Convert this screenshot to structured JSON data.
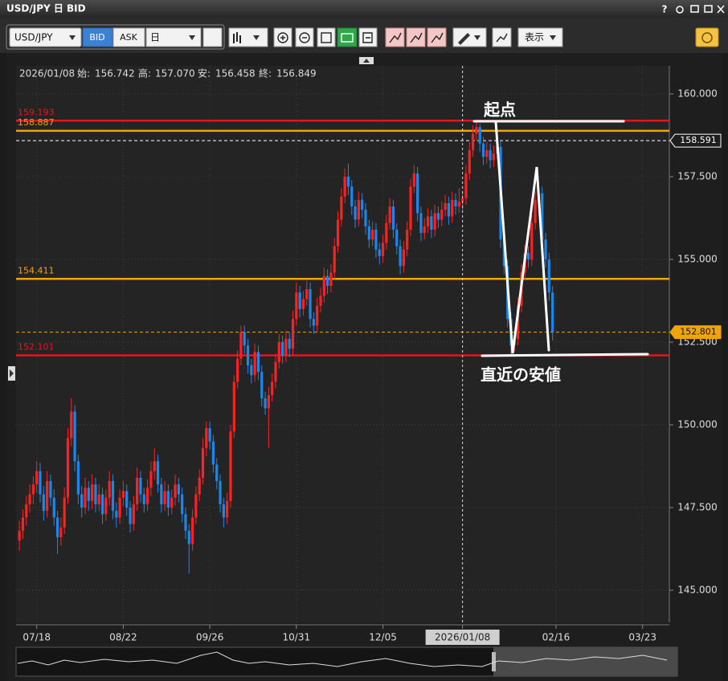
{
  "window": {
    "title": "USD/JPY 日 BID",
    "help": "?"
  },
  "toolbar": {
    "symbol": "USD/JPY",
    "bid": "BID",
    "ask": "ASK",
    "period": "日",
    "view": "表示"
  },
  "info": {
    "date": "2026/01/08",
    "open_label": "始:",
    "open": "156.742",
    "high_label": "高:",
    "high": "157.070",
    "low_label": "安:",
    "low": "156.458",
    "close_label": "終:",
    "close": "156.849"
  },
  "annotations": {
    "start": "起点",
    "recent_low": "直近の安値"
  },
  "chart_data": {
    "type": "candlestick",
    "up_color": "#ff2121",
    "down_color": "#1f86e8",
    "grid": true,
    "ylim": [
      144.03,
      160.85
    ],
    "yticks": [
      {
        "value": 145,
        "label": "145.000"
      },
      {
        "value": 147.5,
        "label": "147.500"
      },
      {
        "value": 150,
        "label": "150.000"
      },
      {
        "value": 152.5,
        "label": "152.500"
      },
      {
        "value": 155,
        "label": "155.000"
      },
      {
        "value": 157.5,
        "label": "157.500"
      },
      {
        "value": 160,
        "label": "160.000"
      }
    ],
    "levels": [
      {
        "value": 159.193,
        "color": "#e8141b",
        "style": "solid",
        "label_side": "left"
      },
      {
        "value": 158.887,
        "color": "#f0a500",
        "style": "solid",
        "label_side": "left"
      },
      {
        "value": 158.591,
        "color": "#ffffff",
        "style": "dashed",
        "label_side": "right"
      },
      {
        "value": 154.411,
        "color": "#f0a500",
        "style": "solid",
        "label_side": "left"
      },
      {
        "value": 152.801,
        "color": "#f0a500",
        "style": "dashed",
        "label_side": "right"
      },
      {
        "value": 152.101,
        "color": "#e8141b",
        "style": "solid",
        "label_side": "left"
      }
    ],
    "categories": [
      null,
      null,
      null,
      null,
      null,
      "07/18",
      null,
      null,
      null,
      null,
      null,
      null,
      null,
      null,
      null,
      null,
      null,
      null,
      null,
      null,
      null,
      null,
      null,
      null,
      null,
      null,
      null,
      null,
      null,
      null,
      "08/22",
      null,
      null,
      null,
      null,
      null,
      null,
      null,
      null,
      null,
      null,
      null,
      null,
      null,
      null,
      null,
      null,
      null,
      null,
      null,
      null,
      null,
      null,
      null,
      null,
      "09/26",
      null,
      null,
      null,
      null,
      null,
      null,
      null,
      null,
      null,
      null,
      null,
      null,
      null,
      null,
      null,
      null,
      null,
      null,
      null,
      null,
      null,
      null,
      null,
      null,
      "10/31",
      null,
      null,
      null,
      null,
      null,
      null,
      null,
      null,
      null,
      null,
      null,
      null,
      null,
      null,
      null,
      null,
      null,
      null,
      null,
      null,
      null,
      null,
      null,
      null,
      "12/05",
      null,
      null,
      null,
      null,
      null,
      null,
      null,
      null,
      null,
      null,
      null,
      null,
      null,
      null,
      null,
      null,
      null,
      null,
      null,
      null,
      null,
      null,
      "2026/01/08",
      null,
      null,
      null,
      null,
      null,
      null,
      null,
      null,
      null,
      null,
      null,
      null,
      null,
      null,
      null,
      null,
      null,
      null,
      null,
      null,
      null,
      null,
      null,
      null,
      null,
      null,
      "02/16",
      null,
      null,
      null,
      null,
      null,
      null,
      null,
      null,
      null,
      null,
      null,
      null,
      null,
      null,
      null,
      null,
      null,
      null,
      null,
      null,
      null,
      null,
      null,
      null,
      "03/23",
      null,
      null,
      null,
      null,
      null,
      null,
      null
    ],
    "ohlc": [
      [
        146.5,
        147.1,
        146.2,
        146.8
      ],
      [
        146.8,
        147.45,
        146.55,
        147.2
      ],
      [
        147.2,
        147.85,
        146.95,
        147.6
      ],
      [
        147.6,
        148.2,
        147.35,
        147.9
      ],
      [
        147.9,
        148.45,
        147.6,
        148.2
      ],
      [
        148.2,
        148.9,
        147.95,
        148.6
      ],
      [
        148.6,
        148.85,
        147.65,
        147.9
      ],
      [
        147.9,
        148.15,
        147.1,
        147.4
      ],
      [
        147.4,
        148.6,
        147.2,
        148.3
      ],
      [
        148.3,
        148.5,
        147.55,
        147.8
      ],
      [
        147.8,
        148.05,
        146.95,
        147.2
      ],
      [
        147.2,
        147.4,
        146.1,
        146.6
      ],
      [
        146.6,
        147.2,
        146.35,
        146.9
      ],
      [
        146.9,
        148.1,
        146.7,
        147.8
      ],
      [
        147.8,
        149.9,
        147.6,
        149.6
      ],
      [
        149.6,
        150.8,
        149.35,
        150.4
      ],
      [
        150.4,
        150.6,
        148.6,
        148.9
      ],
      [
        148.9,
        149.1,
        147.6,
        147.9
      ],
      [
        147.9,
        148.15,
        147.2,
        147.5
      ],
      [
        147.5,
        148.4,
        147.3,
        148.1
      ],
      [
        148.1,
        148.3,
        147.4,
        147.7
      ],
      [
        147.7,
        148.5,
        147.45,
        148.2
      ],
      [
        148.2,
        148.4,
        147.35,
        147.6
      ],
      [
        147.6,
        148.2,
        147.4,
        147.9
      ],
      [
        147.9,
        148.1,
        147.0,
        147.3
      ],
      [
        147.3,
        148.05,
        147.1,
        147.8
      ],
      [
        147.8,
        148.6,
        147.55,
        148.3
      ],
      [
        148.3,
        148.5,
        147.15,
        147.4
      ],
      [
        147.4,
        147.65,
        146.9,
        147.2
      ],
      [
        147.2,
        148.05,
        147.0,
        147.8
      ],
      [
        147.8,
        148.3,
        147.55,
        148.0
      ],
      [
        148.0,
        148.2,
        147.25,
        147.5
      ],
      [
        147.5,
        147.7,
        146.75,
        147.0
      ],
      [
        147.0,
        147.85,
        146.8,
        147.6
      ],
      [
        147.6,
        148.7,
        147.4,
        148.4
      ],
      [
        148.4,
        148.6,
        147.65,
        147.9
      ],
      [
        147.9,
        148.1,
        147.35,
        147.6
      ],
      [
        147.6,
        148.35,
        147.4,
        148.1
      ],
      [
        148.1,
        148.9,
        147.85,
        148.6
      ],
      [
        148.6,
        149.3,
        148.35,
        148.9
      ],
      [
        148.9,
        149.1,
        147.95,
        148.2
      ],
      [
        148.2,
        148.4,
        147.35,
        147.6
      ],
      [
        147.6,
        148.3,
        147.4,
        148.0
      ],
      [
        148.0,
        148.2,
        147.25,
        147.5
      ],
      [
        147.5,
        148.05,
        147.3,
        147.8
      ],
      [
        147.8,
        148.5,
        147.55,
        148.2
      ],
      [
        148.2,
        148.4,
        147.65,
        147.9
      ],
      [
        147.9,
        148.1,
        147.05,
        147.3
      ],
      [
        147.3,
        147.5,
        146.55,
        146.8
      ],
      [
        146.8,
        147.0,
        145.5,
        146.4
      ],
      [
        146.4,
        147.45,
        146.2,
        147.2
      ],
      [
        147.2,
        148.15,
        147.0,
        147.9
      ],
      [
        147.9,
        148.65,
        147.7,
        148.4
      ],
      [
        148.4,
        149.6,
        148.2,
        149.3
      ],
      [
        149.3,
        150.1,
        149.05,
        149.9
      ],
      [
        149.9,
        150.1,
        149.25,
        149.5
      ],
      [
        149.5,
        149.7,
        148.55,
        148.8
      ],
      [
        148.8,
        149.0,
        148.05,
        148.3
      ],
      [
        148.3,
        148.5,
        147.35,
        147.6
      ],
      [
        147.6,
        147.8,
        146.9,
        147.2
      ],
      [
        147.2,
        147.95,
        147.0,
        147.7
      ],
      [
        147.7,
        150.0,
        147.5,
        149.8
      ],
      [
        149.8,
        151.5,
        149.6,
        151.3
      ],
      [
        151.3,
        152.25,
        151.1,
        152.0
      ],
      [
        152.0,
        153.0,
        151.8,
        152.8
      ],
      [
        152.8,
        153.0,
        152.15,
        152.4
      ],
      [
        152.4,
        152.6,
        151.55,
        151.8
      ],
      [
        151.8,
        152.0,
        151.25,
        151.5
      ],
      [
        151.5,
        152.45,
        151.3,
        152.2
      ],
      [
        152.2,
        152.4,
        151.35,
        151.6
      ],
      [
        151.6,
        151.8,
        150.55,
        150.8
      ],
      [
        150.8,
        151.0,
        150.3,
        150.5
      ],
      [
        150.5,
        151.15,
        149.3,
        150.9
      ],
      [
        150.9,
        151.55,
        150.7,
        151.3
      ],
      [
        151.3,
        152.15,
        151.1,
        151.9
      ],
      [
        151.9,
        152.75,
        151.7,
        152.5
      ],
      [
        152.5,
        152.7,
        151.85,
        152.1
      ],
      [
        152.1,
        152.85,
        151.9,
        152.6
      ],
      [
        152.6,
        152.8,
        152.05,
        152.3
      ],
      [
        152.3,
        153.45,
        152.1,
        153.2
      ],
      [
        153.2,
        154.3,
        153.0,
        154.0
      ],
      [
        154.0,
        154.2,
        153.25,
        153.5
      ],
      [
        153.5,
        154.05,
        153.3,
        153.8
      ],
      [
        153.8,
        154.35,
        153.6,
        154.1
      ],
      [
        154.1,
        154.3,
        152.95,
        153.2
      ],
      [
        153.2,
        153.4,
        152.75,
        153.0
      ],
      [
        153.0,
        153.85,
        152.8,
        153.6
      ],
      [
        153.6,
        154.15,
        153.4,
        153.9
      ],
      [
        153.9,
        154.75,
        153.7,
        154.5
      ],
      [
        154.5,
        154.7,
        153.95,
        154.2
      ],
      [
        154.2,
        154.85,
        154.0,
        154.6
      ],
      [
        154.6,
        155.65,
        154.4,
        155.4
      ],
      [
        155.4,
        156.45,
        155.2,
        156.2
      ],
      [
        156.2,
        157.15,
        156.0,
        156.9
      ],
      [
        156.9,
        157.75,
        156.7,
        157.5
      ],
      [
        157.5,
        157.9,
        156.95,
        157.2
      ],
      [
        157.2,
        157.4,
        156.35,
        156.6
      ],
      [
        156.6,
        156.8,
        155.95,
        156.2
      ],
      [
        156.2,
        157.05,
        156.0,
        156.8
      ],
      [
        156.8,
        157.0,
        156.25,
        156.5
      ],
      [
        156.5,
        156.7,
        155.75,
        156.0
      ],
      [
        156.0,
        156.2,
        155.35,
        155.6
      ],
      [
        155.6,
        156.15,
        155.4,
        155.9
      ],
      [
        155.9,
        156.1,
        155.05,
        155.3
      ],
      [
        155.3,
        155.5,
        154.85,
        155.1
      ],
      [
        155.1,
        155.75,
        154.9,
        155.5
      ],
      [
        155.5,
        156.35,
        155.3,
        156.1
      ],
      [
        156.1,
        156.85,
        155.9,
        156.6
      ],
      [
        156.6,
        156.8,
        155.65,
        155.9
      ],
      [
        155.9,
        156.1,
        155.15,
        155.4
      ],
      [
        155.4,
        155.6,
        154.55,
        154.8
      ],
      [
        154.8,
        155.55,
        154.6,
        155.3
      ],
      [
        155.3,
        156.15,
        155.1,
        155.9
      ],
      [
        155.9,
        157.45,
        155.7,
        157.2
      ],
      [
        157.2,
        157.85,
        157.0,
        157.6
      ],
      [
        157.6,
        157.8,
        156.15,
        156.4
      ],
      [
        156.4,
        156.6,
        155.55,
        155.8
      ],
      [
        155.8,
        156.25,
        155.6,
        156.0
      ],
      [
        156.0,
        156.55,
        155.8,
        156.3
      ],
      [
        156.3,
        156.5,
        155.65,
        155.9
      ],
      [
        155.9,
        156.65,
        155.7,
        156.4
      ],
      [
        156.4,
        156.6,
        155.95,
        156.2
      ],
      [
        156.2,
        156.75,
        156.0,
        156.5
      ],
      [
        156.5,
        156.95,
        156.3,
        156.7
      ],
      [
        156.7,
        156.9,
        156.05,
        156.3
      ],
      [
        156.3,
        157.05,
        156.1,
        156.8
      ],
      [
        156.8,
        157.0,
        156.35,
        156.6
      ],
      [
        156.6,
        157.15,
        156.4,
        156.742
      ],
      [
        156.742,
        157.07,
        156.458,
        156.849
      ],
      [
        156.849,
        157.85,
        156.65,
        157.6
      ],
      [
        157.6,
        158.55,
        157.4,
        158.3
      ],
      [
        158.3,
        159.05,
        158.1,
        158.8
      ],
      [
        158.8,
        159.193,
        158.6,
        159.0
      ],
      [
        159.0,
        159.1,
        158.25,
        158.5
      ],
      [
        158.5,
        158.7,
        157.85,
        158.1
      ],
      [
        158.1,
        158.55,
        157.9,
        158.3
      ],
      [
        158.3,
        158.5,
        157.75,
        158.0
      ],
      [
        158.0,
        158.45,
        157.8,
        158.2
      ],
      [
        158.2,
        158.65,
        158.0,
        158.4
      ],
      [
        158.4,
        158.6,
        155.35,
        155.6
      ],
      [
        155.6,
        155.8,
        154.55,
        154.8
      ],
      [
        154.8,
        155.0,
        152.95,
        153.2
      ],
      [
        153.2,
        153.4,
        152.101,
        152.4
      ],
      [
        152.4,
        152.85,
        152.2,
        152.6
      ],
      [
        152.6,
        153.85,
        152.4,
        153.6
      ],
      [
        153.6,
        154.85,
        153.4,
        154.6
      ],
      [
        154.6,
        155.45,
        154.4,
        155.2
      ],
      [
        155.2,
        155.4,
        154.75,
        155.0
      ],
      [
        155.0,
        156.35,
        154.8,
        156.1
      ],
      [
        156.1,
        157.05,
        155.9,
        156.8
      ],
      [
        156.8,
        157.3,
        156.6,
        157.0
      ],
      [
        157.0,
        157.2,
        155.35,
        155.6
      ],
      [
        155.6,
        155.8,
        154.75,
        155.0
      ],
      [
        155.0,
        155.2,
        153.75,
        154.0
      ],
      [
        154.0,
        154.2,
        152.55,
        152.801
      ],
      null,
      null,
      null,
      null,
      null,
      null,
      null,
      null,
      null,
      null,
      null,
      null,
      null,
      null,
      null,
      null,
      null,
      null,
      null,
      null,
      null,
      null,
      null,
      null,
      null,
      null,
      null,
      null,
      null,
      null,
      null,
      null,
      null
    ]
  }
}
